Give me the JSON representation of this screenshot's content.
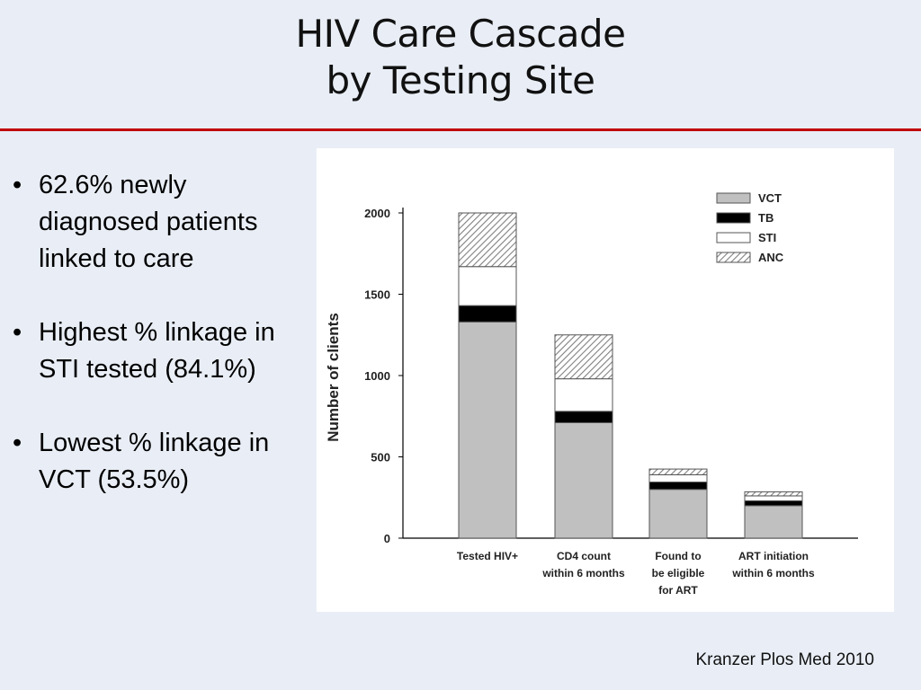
{
  "slide": {
    "title_line1": "HIV Care Cascade",
    "title_line2": "by Testing Site",
    "bullets": [
      "62.6% newly diagnosed patients linked to care",
      "Highest % linkage in STI tested (84.1%)",
      "Lowest % linkage in VCT (53.5%)"
    ],
    "bullet_glyph": "•",
    "citation": "Kranzer Plos Med 2010"
  },
  "colors": {
    "title_rule": "#c00000",
    "vct": "#c0c0c0",
    "tb": "#000000",
    "sti": "#ffffff",
    "anc_hatch": "#808080"
  },
  "chart_data": {
    "type": "bar",
    "stacked": true,
    "ylabel": "Number of clients",
    "ylim": [
      0,
      2000
    ],
    "yticks": [
      0,
      500,
      1000,
      1500,
      2000
    ],
    "categories": [
      [
        "Tested HIV+"
      ],
      [
        "CD4 count",
        "within 6 months"
      ],
      [
        "Found to",
        "be eligible",
        "for ART"
      ],
      [
        "ART initiation",
        "within 6 months"
      ]
    ],
    "series": [
      {
        "name": "VCT",
        "values": [
          1330,
          710,
          300,
          200
        ]
      },
      {
        "name": "TB",
        "values": [
          100,
          70,
          45,
          30
        ]
      },
      {
        "name": "STI",
        "values": [
          240,
          200,
          45,
          30
        ]
      },
      {
        "name": "ANC",
        "values": [
          330,
          270,
          35,
          25
        ]
      }
    ],
    "legend_position": "top-right"
  }
}
